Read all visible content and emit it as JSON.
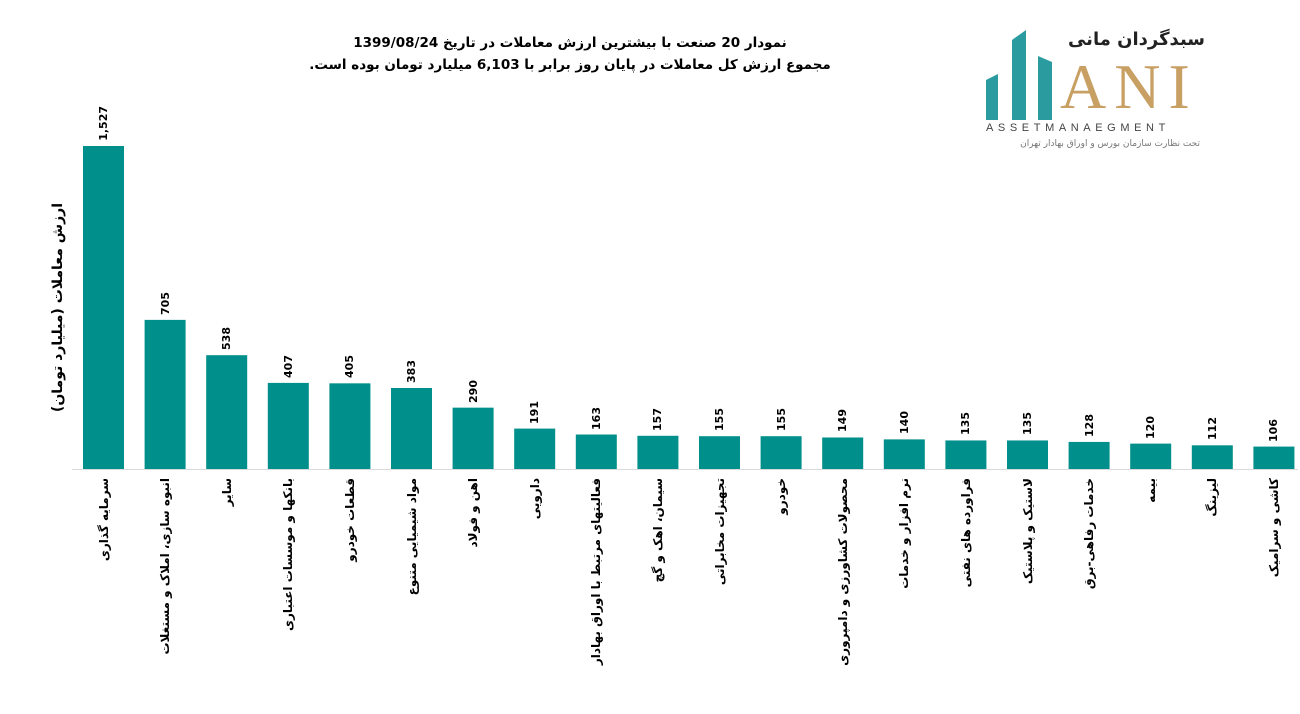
{
  "title": {
    "line1": "نمودار  20 صنعت با بیشترین ارزش معاملات در تاریخ 1399/08/24",
    "line2": "مجموع ارزش  کل معاملات در پایان روز برابر با 6,103 میلیارد تومان بوده است."
  },
  "logo": {
    "fa_name": "سبدگردان مانی",
    "en_name": "ANI",
    "en_sub": "ASSETMANAEGMENT",
    "fa_sub": "تحت نظارت سازمان بورس و اوراق بهادار تهران"
  },
  "colors": {
    "bar": "#008F8A",
    "logo_teal": "#2A9CA0",
    "logo_gold": "#C8A064"
  },
  "chart_data": {
    "type": "bar",
    "title": "نمودار 20 صنعت با بیشترین ارزش معاملات در تاریخ 1399/08/24",
    "xlabel": "",
    "ylabel": "ارزش معاملات (میلیارد تومان)",
    "ylim": [
      0,
      1527
    ],
    "grid": false,
    "categories": [
      "سرمایه گذاری",
      "انبوه سازی، املاک و مستغلات",
      "سایر",
      "بانکها و موسسات اعتباری",
      "قطعات خودرو",
      "مواد شیمیایی متنوع",
      "اهن و فولاد",
      "دارویی",
      "فعالیتهای مرتبط با اوراق بهادار",
      "سیمان، اهک و گچ",
      "تجهیزات مخابراتی",
      "خودرو",
      "محصولات کشاورزی و دامپروری",
      "نرم افزار و خدمات",
      "فراورده های نفتی",
      "لاستیک و پلاستیک",
      "خدمات رفاهی-برق",
      "بیمه",
      "لیزینگ",
      "کاشی و سرامیک"
    ],
    "values": [
      1527,
      705,
      538,
      407,
      405,
      383,
      290,
      191,
      163,
      157,
      155,
      155,
      149,
      140,
      135,
      135,
      128,
      120,
      112,
      106
    ],
    "value_labels": [
      "1,527",
      "705",
      "538",
      "407",
      "405",
      "383",
      "290",
      "191",
      "163",
      "157",
      "155",
      "155",
      "149",
      "140",
      "135",
      "135",
      "128",
      "120",
      "112",
      "106"
    ]
  }
}
